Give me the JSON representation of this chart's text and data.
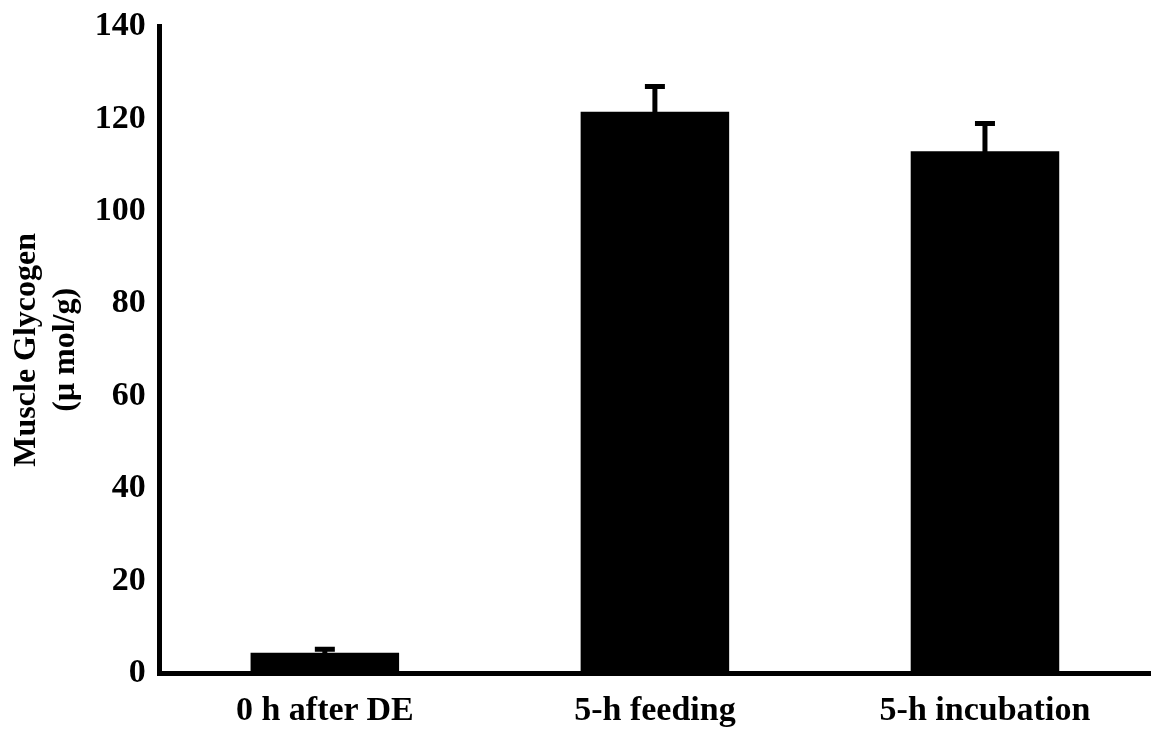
{
  "chart_data": {
    "type": "bar",
    "ylabel": "Muscle Glycogen\n(μ mol/g)",
    "categories": [
      "0 h after DE",
      "5-h feeding",
      "5-h incubation"
    ],
    "values": [
      4.4,
      121.5,
      113
    ],
    "errors": [
      0.8,
      5.5,
      6
    ],
    "color": "#000000",
    "ylim": [
      0,
      140
    ],
    "yticks": [
      0,
      20,
      40,
      60,
      80,
      100,
      120,
      140
    ],
    "grid": false,
    "legend": false
  }
}
